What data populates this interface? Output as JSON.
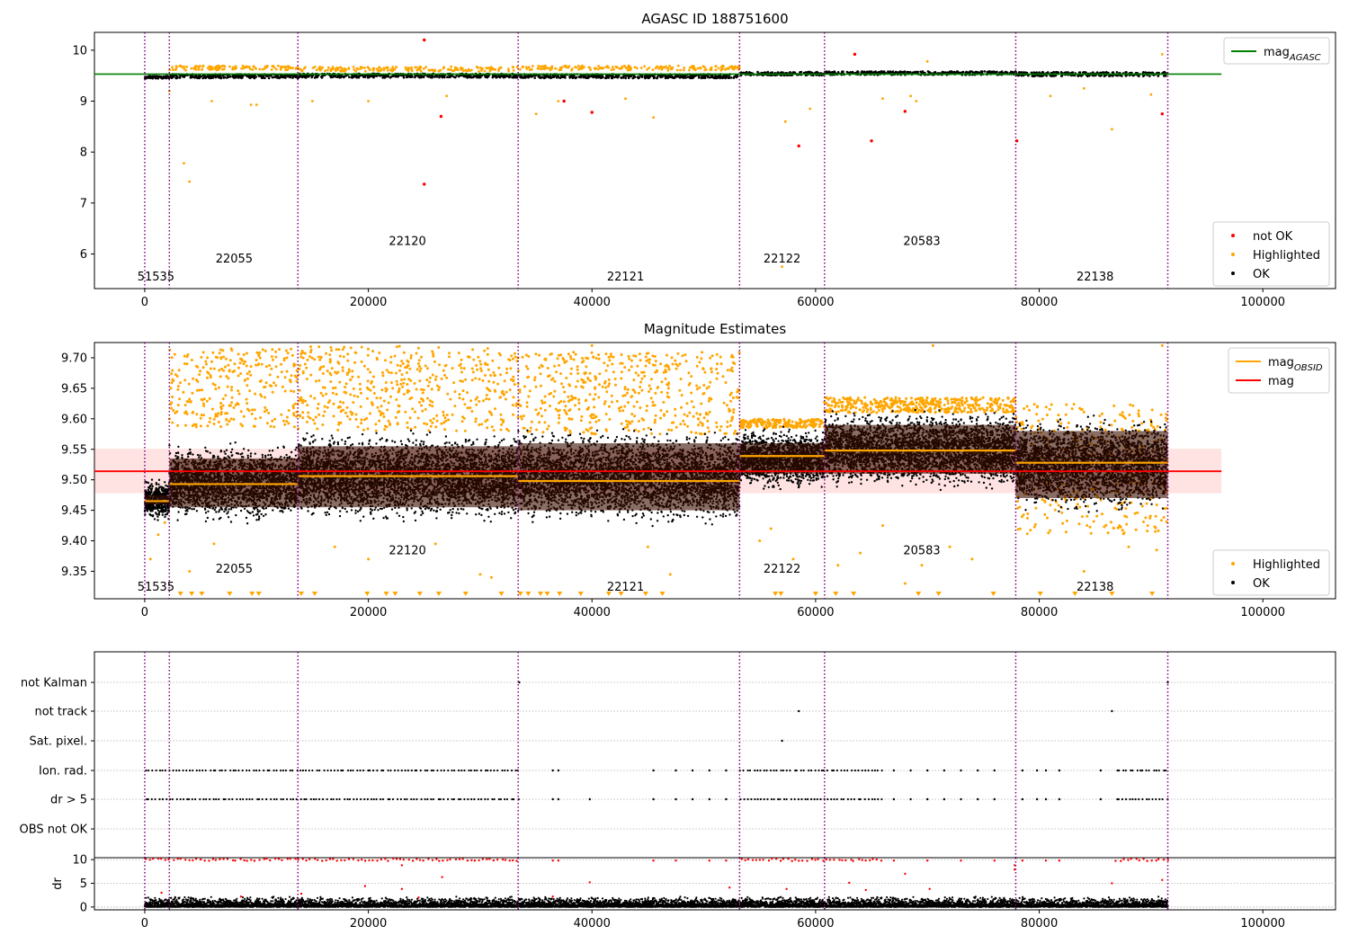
{
  "chart_data": [
    {
      "id": "top",
      "type": "scatter",
      "title": "AGASC ID 188751600",
      "xlim": [
        -4500,
        106500
      ],
      "ylim": [
        5.32,
        10.35
      ],
      "xticks": [
        0,
        20000,
        40000,
        60000,
        80000,
        100000
      ],
      "xtick_labels": [
        "0",
        "20000",
        "40000",
        "60000",
        "80000",
        "100000"
      ],
      "yticks": [
        6,
        7,
        8,
        9,
        10
      ],
      "ytick_labels": [
        "6",
        "7",
        "8",
        "9",
        "10"
      ],
      "obs_boundaries": [
        0,
        2200,
        13700,
        33400,
        53200,
        60800,
        77900,
        91500
      ],
      "obs_labels": [
        {
          "text": "51535",
          "x": 1000,
          "y": 5.48
        },
        {
          "text": "22055",
          "x": 8000,
          "y": 5.83
        },
        {
          "text": "22120",
          "x": 23500,
          "y": 6.18
        },
        {
          "text": "22121",
          "x": 43000,
          "y": 5.48
        },
        {
          "text": "22122",
          "x": 57000,
          "y": 5.83
        },
        {
          "text": "20583",
          "x": 69500,
          "y": 6.18
        },
        {
          "text": "22138",
          "x": 85000,
          "y": 5.48
        }
      ],
      "mag_agasc": 9.53,
      "mag_agasc_range": [
        -4500,
        96300
      ],
      "ok_band": [
        {
          "x": [
            0,
            2200
          ],
          "center": 9.47,
          "width": 0.05
        },
        {
          "x": [
            2200,
            13700
          ],
          "center": 9.49,
          "width": 0.08
        },
        {
          "x": [
            13700,
            33400
          ],
          "center": 9.5,
          "width": 0.08
        },
        {
          "x": [
            33400,
            53200
          ],
          "center": 9.49,
          "width": 0.08
        },
        {
          "x": [
            53200,
            60800
          ],
          "center": 9.54,
          "width": 0.07
        },
        {
          "x": [
            60800,
            77900
          ],
          "center": 9.55,
          "width": 0.07
        },
        {
          "x": [
            77900,
            91500
          ],
          "center": 9.53,
          "width": 0.08
        }
      ],
      "highlighted_band": [
        {
          "x": [
            2200,
            13700
          ],
          "center": 9.65,
          "width": 0.09
        },
        {
          "x": [
            13700,
            33400
          ],
          "center": 9.63,
          "width": 0.09
        },
        {
          "x": [
            33400,
            53200
          ],
          "center": 9.65,
          "width": 0.09
        }
      ],
      "highlighted_outliers": [
        [
          2200,
          9.2
        ],
        [
          3500,
          7.78
        ],
        [
          4000,
          7.42
        ],
        [
          6000,
          9.0
        ],
        [
          9500,
          8.93
        ],
        [
          10000,
          8.93
        ],
        [
          15000,
          9.0
        ],
        [
          20000,
          9.0
        ],
        [
          27000,
          9.1
        ],
        [
          35000,
          8.75
        ],
        [
          37000,
          9.0
        ],
        [
          43000,
          9.05
        ],
        [
          45500,
          8.68
        ],
        [
          57000,
          5.75
        ],
        [
          57300,
          8.6
        ],
        [
          59500,
          8.85
        ],
        [
          66000,
          9.05
        ],
        [
          68500,
          9.1
        ],
        [
          69000,
          9.0
        ],
        [
          70000,
          9.78
        ],
        [
          81000,
          9.1
        ],
        [
          84000,
          9.25
        ],
        [
          86500,
          8.45
        ],
        [
          90000,
          9.13
        ],
        [
          91000,
          9.92
        ]
      ],
      "not_ok_points": [
        [
          25000,
          10.2
        ],
        [
          25000,
          7.37
        ],
        [
          26500,
          8.7
        ],
        [
          37500,
          9.0
        ],
        [
          40000,
          8.78
        ],
        [
          58500,
          8.12
        ],
        [
          63500,
          9.92
        ],
        [
          65000,
          8.22
        ],
        [
          68000,
          8.8
        ],
        [
          78000,
          8.22
        ],
        [
          91000,
          8.75
        ]
      ],
      "legends": [
        {
          "placement": "top-right",
          "entries": [
            {
              "label": "mag",
              "subscript": "AGASC",
              "kind": "line",
              "color": "#008000"
            }
          ]
        },
        {
          "placement": "lower-right",
          "entries": [
            {
              "label": "not OK",
              "kind": "dot",
              "color": "#ff0000"
            },
            {
              "label": "Highlighted",
              "kind": "dot",
              "color": "#ffa500"
            },
            {
              "label": "OK",
              "kind": "dot",
              "color": "#000000"
            }
          ]
        }
      ]
    },
    {
      "id": "middle",
      "type": "scatter",
      "title": "Magnitude Estimates",
      "xlim": [
        -4500,
        106500
      ],
      "ylim": [
        9.305,
        9.725
      ],
      "xticks": [
        0,
        20000,
        40000,
        60000,
        80000,
        100000
      ],
      "xtick_labels": [
        "0",
        "20000",
        "40000",
        "60000",
        "80000",
        "100000"
      ],
      "yticks": [
        9.35,
        9.4,
        9.45,
        9.5,
        9.55,
        9.6,
        9.65,
        9.7
      ],
      "ytick_labels": [
        "9.35",
        "9.40",
        "9.45",
        "9.50",
        "9.55",
        "9.60",
        "9.65",
        "9.70"
      ],
      "obs_boundaries": [
        0,
        2200,
        13700,
        33400,
        53200,
        60800,
        77900,
        91500
      ],
      "obs_labels": [
        {
          "text": "51535",
          "x": 1000,
          "y": 9.318
        },
        {
          "text": "22055",
          "x": 8000,
          "y": 9.348
        },
        {
          "text": "22120",
          "x": 23500,
          "y": 9.378
        },
        {
          "text": "22121",
          "x": 43000,
          "y": 9.318
        },
        {
          "text": "22122",
          "x": 57000,
          "y": 9.348
        },
        {
          "text": "20583",
          "x": 69500,
          "y": 9.378
        },
        {
          "text": "22138",
          "x": 85000,
          "y": 9.318
        }
      ],
      "mag": 9.514,
      "mag_band": [
        9.478,
        9.551
      ],
      "mag_range": [
        -4500,
        96300
      ],
      "mag_obsid": [
        {
          "x": [
            0,
            2200
          ],
          "value": 9.465
        },
        {
          "x": [
            2200,
            13700
          ],
          "value": 9.493
        },
        {
          "x": [
            13700,
            33400
          ],
          "value": 9.506
        },
        {
          "x": [
            33400,
            53200
          ],
          "value": 9.498
        },
        {
          "x": [
            53200,
            60800
          ],
          "value": 9.539
        },
        {
          "x": [
            60800,
            77900
          ],
          "value": 9.548
        },
        {
          "x": [
            77900,
            91500
          ],
          "value": 9.528
        }
      ],
      "ok_band": [
        {
          "x": [
            0,
            2200
          ],
          "lo": 9.43,
          "hi": 9.505
        },
        {
          "x": [
            2200,
            13700
          ],
          "lo": 9.425,
          "hi": 9.565
        },
        {
          "x": [
            13700,
            33400
          ],
          "lo": 9.425,
          "hi": 9.585
        },
        {
          "x": [
            33400,
            53200
          ],
          "lo": 9.42,
          "hi": 9.59
        },
        {
          "x": [
            53200,
            60800
          ],
          "lo": 9.48,
          "hi": 9.59
        },
        {
          "x": [
            60800,
            77900
          ],
          "lo": 9.48,
          "hi": 9.62
        },
        {
          "x": [
            77900,
            91500
          ],
          "lo": 9.44,
          "hi": 9.61
        }
      ],
      "highlighted_band": [
        {
          "x": [
            2200,
            13700
          ],
          "lo": 9.585,
          "hi": 9.715
        },
        {
          "x": [
            13700,
            33400
          ],
          "lo": 9.58,
          "hi": 9.72
        },
        {
          "x": [
            33400,
            53200
          ],
          "lo": 9.575,
          "hi": 9.71
        },
        {
          "x": [
            53200,
            60800
          ],
          "lo": 9.585,
          "hi": 9.6
        },
        {
          "x": [
            60800,
            77900
          ],
          "lo": 9.61,
          "hi": 9.635
        },
        {
          "x": [
            77900,
            91500
          ],
          "lo": 9.41,
          "hi": 9.625
        }
      ],
      "highlighted_outliers": [
        [
          500,
          9.37
        ],
        [
          1200,
          9.41
        ],
        [
          1800,
          9.43
        ],
        [
          4000,
          9.35
        ],
        [
          6200,
          9.395
        ],
        [
          17000,
          9.39
        ],
        [
          20000,
          9.37
        ],
        [
          26000,
          9.395
        ],
        [
          30000,
          9.345
        ],
        [
          31000,
          9.34
        ],
        [
          40000,
          9.72
        ],
        [
          45000,
          9.39
        ],
        [
          47000,
          9.345
        ],
        [
          55000,
          9.4
        ],
        [
          56000,
          9.42
        ],
        [
          58000,
          9.37
        ],
        [
          62000,
          9.36
        ],
        [
          64000,
          9.38
        ],
        [
          66000,
          9.425
        ],
        [
          68000,
          9.33
        ],
        [
          69500,
          9.36
        ],
        [
          70500,
          9.72
        ],
        [
          72000,
          9.39
        ],
        [
          74000,
          9.37
        ],
        [
          84000,
          9.35
        ],
        [
          88000,
          9.39
        ],
        [
          90500,
          9.385
        ],
        [
          91000,
          9.72
        ]
      ],
      "clipped_markers_x": [
        3200,
        4200,
        5100,
        7600,
        9600,
        10200,
        14000,
        15200,
        19900,
        21600,
        22400,
        24600,
        26300,
        28700,
        31900,
        33600,
        34300,
        35400,
        36000,
        37100,
        39000,
        41500,
        42600,
        44800,
        46300,
        56400,
        56900,
        60000,
        61800,
        63400,
        69200,
        71000,
        75900,
        80100,
        83200,
        86500,
        90100
      ],
      "legends": [
        {
          "placement": "top-right",
          "entries": [
            {
              "label": "mag",
              "subscript": "OBSID",
              "kind": "line",
              "color": "#ffa500"
            },
            {
              "label": "mag",
              "kind": "line",
              "color": "#ff0000"
            }
          ]
        },
        {
          "placement": "lower-right",
          "entries": [
            {
              "label": "Highlighted",
              "kind": "dot",
              "color": "#ffa500"
            },
            {
              "label": "OK",
              "kind": "dot",
              "color": "#000000"
            }
          ]
        }
      ]
    },
    {
      "id": "flags",
      "type": "scatter",
      "xlim": [
        -4500,
        106500
      ],
      "categories": [
        "not Kalman",
        "not track",
        "Sat. pixel.",
        "Ion. rad.",
        "dr > 5",
        "OBS not OK"
      ],
      "obs_boundaries": [
        0,
        2200,
        13700,
        33400,
        53200,
        60800,
        77900,
        91500
      ],
      "dense_ranges": {
        "Ion. rad.": [
          [
            0,
            33400
          ],
          [
            53200,
            66000
          ],
          [
            86800,
            91500
          ]
        ],
        "dr > 5": [
          [
            0,
            33400
          ],
          [
            53200,
            66000
          ],
          [
            86800,
            91500
          ]
        ]
      },
      "sparse_points": {
        "Ion. rad.": [
          36500,
          37000,
          45500,
          47500,
          49000,
          50500,
          52000,
          67000,
          68500,
          70000,
          71500,
          73000,
          74500,
          76000,
          78500,
          79800,
          80600,
          81800,
          85500
        ],
        "dr > 5": [
          36500,
          37000,
          39800,
          45500,
          47500,
          49000,
          50500,
          52000,
          67000,
          68500,
          70000,
          71500,
          73000,
          74500,
          76000,
          78500,
          79800,
          80600,
          81800,
          85500
        ],
        "not track": [
          58500,
          86500
        ],
        "Sat. pixel.": [
          57000
        ],
        "not Kalman": [
          33500,
          91500
        ]
      }
    },
    {
      "id": "dr",
      "type": "scatter",
      "ylabel": "dr",
      "xlim": [
        -4500,
        106500
      ],
      "ylim": [
        -0.6,
        10.4
      ],
      "xticks": [
        0,
        20000,
        40000,
        60000,
        80000,
        100000
      ],
      "xtick_labels": [
        "0",
        "20000",
        "40000",
        "60000",
        "80000",
        "100000"
      ],
      "yticks": [
        0,
        5,
        10
      ],
      "ytick_labels": [
        "0",
        "5",
        "10"
      ],
      "obs_boundaries": [
        0,
        2200,
        13700,
        33400,
        53200,
        60800,
        77900,
        91500
      ],
      "red_ranges": [
        [
          0,
          33400
        ],
        [
          53200,
          66000
        ],
        [
          86800,
          91500
        ]
      ],
      "red_sparse": [
        36500,
        37000,
        45500,
        47500,
        50500,
        52000,
        67000,
        70000,
        73000,
        76000,
        78500,
        80600,
        81800
      ],
      "red_mid": [
        [
          1500,
          3.0
        ],
        [
          8600,
          2.2
        ],
        [
          14000,
          2.8
        ],
        [
          19700,
          4.4
        ],
        [
          23000,
          8.8
        ],
        [
          23000,
          3.8
        ],
        [
          24500,
          2.0
        ],
        [
          26600,
          6.3
        ],
        [
          36500,
          2.2
        ],
        [
          39800,
          5.2
        ],
        [
          52300,
          4.1
        ],
        [
          57400,
          3.8
        ],
        [
          63000,
          5.1
        ],
        [
          64500,
          3.6
        ],
        [
          68000,
          7.0
        ],
        [
          70200,
          3.8
        ],
        [
          77800,
          7.9
        ],
        [
          77800,
          8.8
        ],
        [
          86500,
          5.0
        ],
        [
          91000,
          5.7
        ]
      ]
    }
  ]
}
